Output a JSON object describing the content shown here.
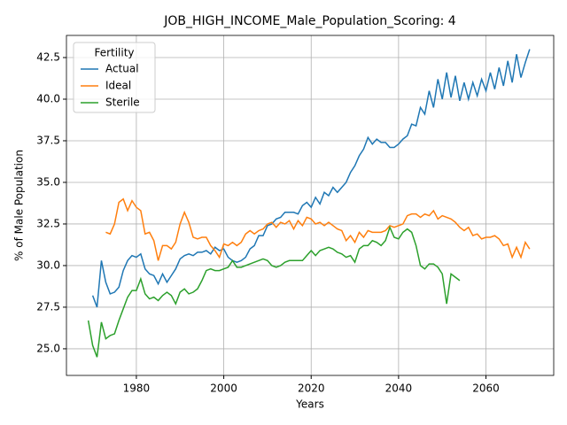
{
  "chart_data": {
    "type": "line",
    "title": "JOB_HIGH_INCOME_Male_Population_Scoring: 4",
    "xlabel": "Years",
    "ylabel": "% of Male Population",
    "legend_title": "Fertility",
    "legend": "upper left",
    "grid": true,
    "xlim": [
      1964,
      2075.5
    ],
    "xticks": [
      1980,
      2000,
      2020,
      2040,
      2060
    ],
    "ylim": [
      23.4,
      43.83
    ],
    "yticks": [
      {
        "value": 25,
        "label": "25.0"
      },
      27.5,
      {
        "value": 30,
        "label": "30.0"
      },
      32.5,
      {
        "value": 35,
        "label": "35.0"
      },
      37.5,
      {
        "value": 40,
        "label": "40.0"
      },
      42.5
    ],
    "x": [
      1969,
      1970,
      1971,
      1972,
      1973,
      1974,
      1975,
      1976,
      1977,
      1978,
      1979,
      1980,
      1981,
      1982,
      1983,
      1984,
      1985,
      1986,
      1987,
      1988,
      1989,
      1990,
      1991,
      1992,
      1993,
      1994,
      1995,
      1996,
      1997,
      1998,
      1999,
      2000,
      2001,
      2002,
      2003,
      2004,
      2005,
      2006,
      2007,
      2008,
      2009,
      2010,
      2011,
      2012,
      2013,
      2014,
      2015,
      2016,
      2017,
      2018,
      2019,
      2020,
      2021,
      2022,
      2023,
      2024,
      2025,
      2026,
      2027,
      2028,
      2029,
      2030,
      2031,
      2032,
      2033,
      2034,
      2035,
      2036,
      2037,
      2038,
      2039,
      2040,
      2041,
      2042,
      2043,
      2044,
      2045,
      2046,
      2047,
      2048,
      2049,
      2050,
      2051,
      2052,
      2053,
      2054,
      2055,
      2056,
      2057,
      2058,
      2059,
      2060,
      2061,
      2062,
      2063,
      2064,
      2065,
      2066,
      2067,
      2068,
      2069,
      2070
    ],
    "series": [
      {
        "name": "Actual",
        "color": "#1f77b4",
        "values": [
          null,
          28.2,
          27.5,
          30.3,
          29.0,
          28.3,
          28.4,
          28.7,
          29.7,
          30.3,
          30.6,
          30.5,
          30.7,
          29.8,
          29.5,
          29.4,
          28.9,
          29.5,
          29.0,
          29.4,
          29.8,
          30.4,
          30.6,
          30.7,
          30.6,
          30.8,
          30.8,
          30.9,
          30.7,
          31.1,
          30.9,
          31.0,
          30.5,
          30.3,
          30.2,
          30.3,
          30.5,
          31.0,
          31.2,
          31.8,
          31.8,
          32.4,
          32.5,
          32.8,
          32.9,
          33.2,
          33.2,
          33.2,
          33.1,
          33.6,
          33.8,
          33.5,
          34.1,
          33.7,
          34.4,
          34.2,
          34.7,
          34.4,
          34.7,
          35.0,
          35.6,
          36.0,
          36.6,
          37.0,
          37.7,
          37.3,
          37.6,
          37.4,
          37.4,
          37.1,
          37.1,
          37.3,
          37.6,
          37.8,
          38.5,
          38.4,
          39.5,
          39.1,
          40.5,
          39.5,
          41.2,
          40.0,
          41.6,
          40.1,
          41.4,
          39.9,
          41.0,
          40.0,
          41.0,
          40.2,
          41.2,
          40.5,
          41.6,
          40.6,
          41.9,
          40.8,
          42.3,
          41.0,
          42.7,
          41.3,
          42.2,
          43.0
        ]
      },
      {
        "name": "Ideal",
        "color": "#ff7f0e",
        "values": [
          null,
          null,
          null,
          null,
          32.0,
          31.9,
          32.5,
          33.8,
          34.0,
          33.3,
          33.9,
          33.5,
          33.3,
          31.9,
          32.0,
          31.5,
          30.3,
          31.2,
          31.2,
          31.0,
          31.4,
          32.5,
          33.2,
          32.6,
          31.7,
          31.6,
          31.7,
          31.7,
          31.2,
          30.9,
          30.5,
          31.3,
          31.2,
          31.4,
          31.2,
          31.4,
          31.9,
          32.1,
          31.9,
          32.1,
          32.2,
          32.5,
          32.6,
          32.3,
          32.6,
          32.5,
          32.7,
          32.2,
          32.7,
          32.4,
          32.9,
          32.8,
          32.5,
          32.6,
          32.4,
          32.6,
          32.4,
          32.2,
          32.1,
          31.5,
          31.8,
          31.4,
          32.0,
          31.7,
          32.1,
          32.0,
          32.0,
          32.0,
          32.1,
          32.4,
          32.3,
          32.4,
          32.5,
          33.0,
          33.1,
          33.1,
          32.9,
          33.1,
          33.0,
          33.3,
          32.8,
          33.0,
          32.9,
          32.8,
          32.6,
          32.3,
          32.1,
          32.3,
          31.8,
          31.9,
          31.6,
          31.7,
          31.7,
          31.8,
          31.6,
          31.2,
          31.3,
          30.5,
          31.1,
          30.5,
          31.4,
          31.0
        ]
      },
      {
        "name": "Sterile",
        "color": "#2ca02c",
        "values": [
          26.7,
          25.2,
          24.5,
          26.6,
          25.6,
          25.8,
          25.9,
          26.7,
          27.4,
          28.1,
          28.5,
          28.5,
          29.2,
          28.3,
          28.0,
          28.1,
          27.9,
          28.2,
          28.4,
          28.2,
          27.7,
          28.4,
          28.6,
          28.3,
          28.4,
          28.6,
          29.1,
          29.7,
          29.8,
          29.7,
          29.7,
          29.8,
          29.9,
          30.3,
          29.9,
          29.9,
          30.0,
          30.1,
          30.2,
          30.3,
          30.4,
          30.3,
          30.0,
          29.9,
          30.0,
          30.2,
          30.3,
          30.3,
          30.3,
          30.3,
          30.6,
          30.9,
          30.6,
          30.9,
          31.0,
          31.1,
          31.0,
          30.8,
          30.7,
          30.5,
          30.6,
          30.2,
          31.0,
          31.2,
          31.2,
          31.5,
          31.4,
          31.2,
          31.5,
          32.3,
          31.7,
          31.6,
          32.0,
          32.2,
          32.0,
          31.2,
          30.0,
          29.8,
          30.1,
          30.1,
          29.9,
          29.5,
          27.7,
          29.5,
          29.3,
          29.1,
          null,
          null,
          null,
          null,
          null,
          null,
          null,
          null,
          null,
          null,
          null,
          null,
          null,
          null,
          null,
          null
        ]
      }
    ]
  }
}
